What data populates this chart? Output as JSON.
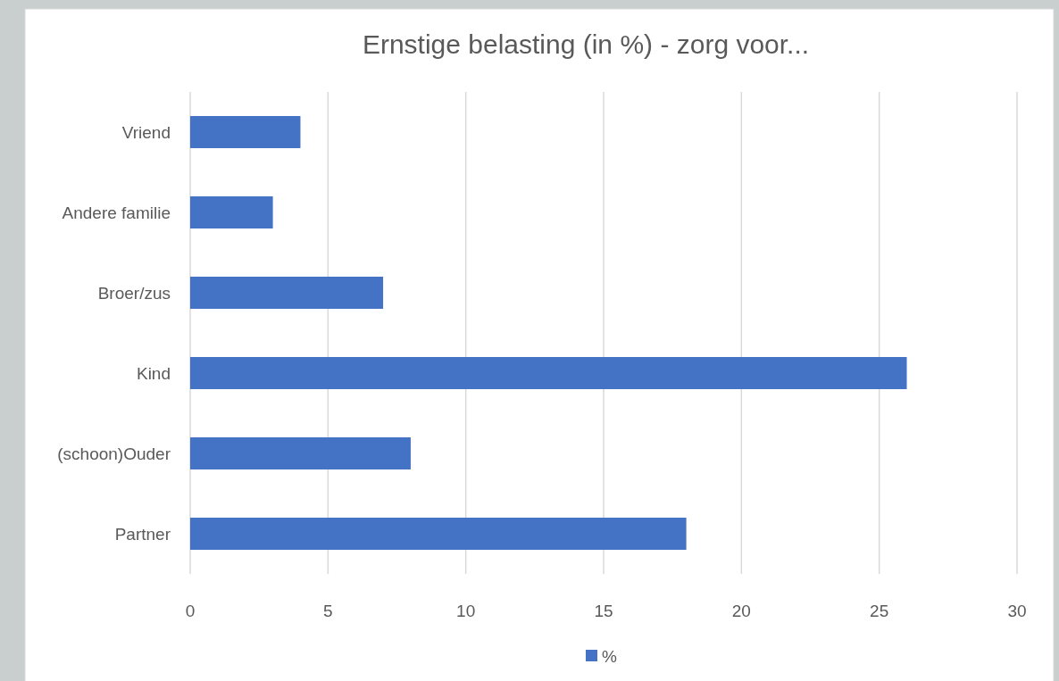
{
  "chart_data": {
    "type": "bar",
    "orientation": "horizontal",
    "title": "Ernstige belasting (in %) - zorg voor...",
    "categories": [
      "Vriend",
      "Andere familie",
      "Broer/zus",
      "Kind",
      "(schoon)Ouder",
      "Partner"
    ],
    "series": [
      {
        "name": "%",
        "color": "#4472c4",
        "values": [
          4,
          3,
          7,
          26,
          8,
          18
        ]
      }
    ],
    "xlim": [
      0,
      30
    ],
    "xticks": [
      0,
      5,
      10,
      15,
      20,
      25,
      30
    ],
    "grid": "x",
    "legend": "bottom"
  }
}
